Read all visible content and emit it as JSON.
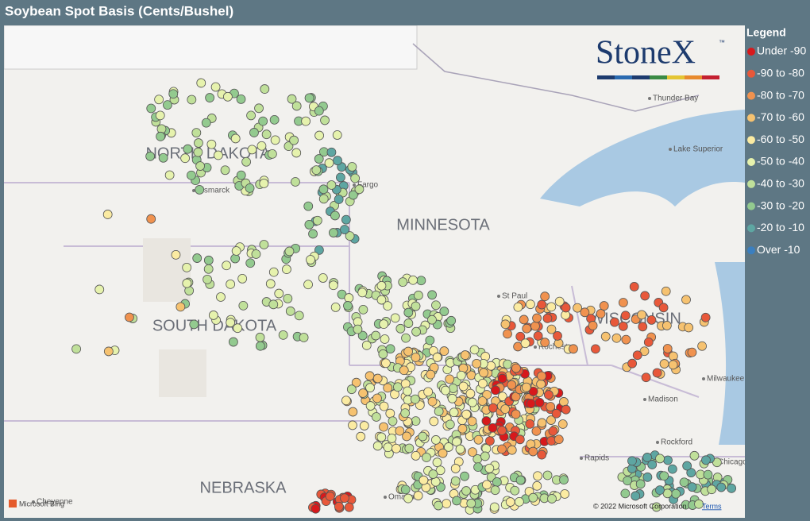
{
  "header": {
    "title": "Soybean Spot Basis (Cents/Bushel)"
  },
  "logo": {
    "text": "StoneX",
    "mark": "™"
  },
  "legend": {
    "title": "Legend",
    "items": [
      {
        "label": "Under -90",
        "color": "#d7191c"
      },
      {
        "label": "-90 to -80",
        "color": "#e8583a"
      },
      {
        "label": "-80 to -70",
        "color": "#f0924f"
      },
      {
        "label": "-70 to -60",
        "color": "#f6c270"
      },
      {
        "label": "-60 to -50",
        "color": "#fbeba2"
      },
      {
        "label": "-50 to -40",
        "color": "#e6f2ad"
      },
      {
        "label": "-40 to -30",
        "color": "#c0e09a"
      },
      {
        "label": "-30 to -20",
        "color": "#93ca8f"
      },
      {
        "label": "-20 to -10",
        "color": "#5ea6a2"
      },
      {
        "label": "Over -10",
        "color": "#3b7fbf"
      }
    ]
  },
  "map": {
    "states": [
      "NORTH DAKOTA",
      "SOUTH DAKOTA",
      "MINNESOTA",
      "WISCONSIN",
      "NEBRASKA"
    ],
    "places": [
      "Thunder Bay",
      "Lake Superior",
      "Bismarck",
      "Fargo",
      "St Paul",
      "Rochester",
      "Madison",
      "Milwaukee",
      "Rockford",
      "Chicago",
      "Omaha",
      "Cheyenne",
      "Rapids"
    ],
    "attribution": {
      "brand": "Microsoft Bing",
      "copyright": "© 2022 Microsoft Corporation",
      "terms": "Terms"
    }
  }
}
